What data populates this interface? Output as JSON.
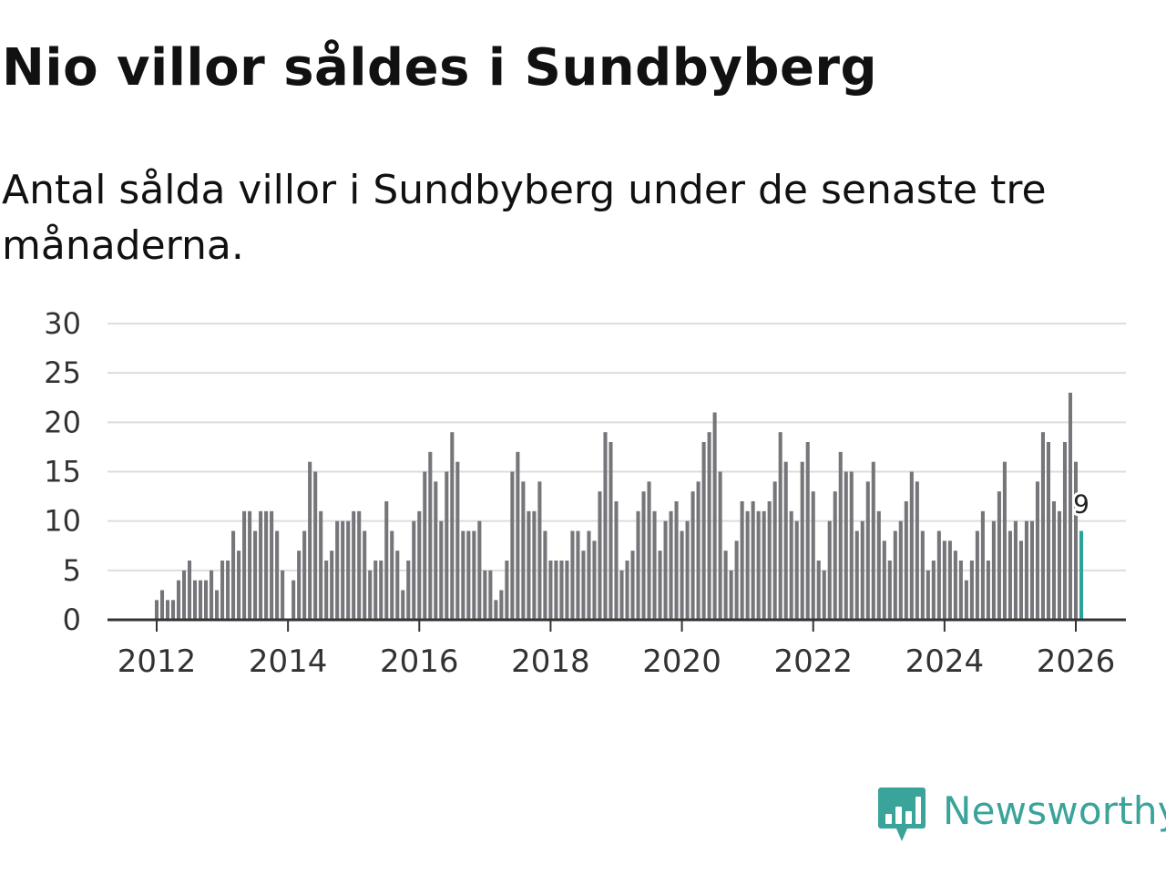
{
  "title": "Nio villor såldes i Sundbyberg",
  "subtitle": "Antal sålda villor i Sundbyberg under de senaste tre månaderna.",
  "brand": {
    "name": "Newsworthy",
    "icon": "newsworthy-logo-icon"
  },
  "colors": {
    "bar": "#76757a",
    "highlight": "#2aa39b",
    "grid": "#dddddd",
    "axis": "#333333",
    "brand": "#3aa39a"
  },
  "chart_data": {
    "type": "bar",
    "title": "Nio villor såldes i Sundbyberg",
    "xlabel": "",
    "ylabel": "",
    "ylim": [
      0,
      30
    ],
    "yticks": [
      "0",
      "5",
      "10",
      "15",
      "20",
      "25",
      "30"
    ],
    "xticks": [
      "2012",
      "2014",
      "2016",
      "2018",
      "2020",
      "2022",
      "2024",
      "2026"
    ],
    "start": "2012-01",
    "end": "2026-01",
    "highlight_label": "9",
    "values": [
      2,
      3,
      2,
      2,
      4,
      5,
      6,
      4,
      4,
      4,
      5,
      3,
      6,
      6,
      9,
      7,
      11,
      11,
      9,
      11,
      11,
      11,
      9,
      5,
      0,
      4,
      7,
      9,
      16,
      15,
      11,
      6,
      7,
      10,
      10,
      10,
      11,
      11,
      9,
      5,
      6,
      6,
      12,
      9,
      7,
      3,
      6,
      10,
      11,
      15,
      17,
      14,
      10,
      15,
      19,
      16,
      9,
      9,
      9,
      10,
      5,
      5,
      2,
      3,
      6,
      15,
      17,
      14,
      11,
      11,
      14,
      9,
      6,
      6,
      6,
      6,
      9,
      9,
      7,
      9,
      8,
      13,
      19,
      18,
      12,
      5,
      6,
      7,
      11,
      13,
      14,
      11,
      7,
      10,
      11,
      12,
      9,
      10,
      13,
      14,
      18,
      19,
      21,
      15,
      7,
      5,
      8,
      12,
      11,
      12,
      11,
      11,
      12,
      14,
      19,
      16,
      11,
      10,
      16,
      18,
      13,
      6,
      5,
      10,
      13,
      17,
      15,
      15,
      9,
      10,
      14,
      16,
      11,
      8,
      6,
      9,
      10,
      12,
      15,
      14,
      9,
      5,
      6,
      9,
      8,
      8,
      7,
      6,
      4,
      6,
      9,
      11,
      6,
      10,
      13,
      16,
      9,
      10,
      8,
      10,
      10,
      14,
      19,
      18,
      12,
      11,
      18,
      23,
      16,
      9
    ]
  }
}
